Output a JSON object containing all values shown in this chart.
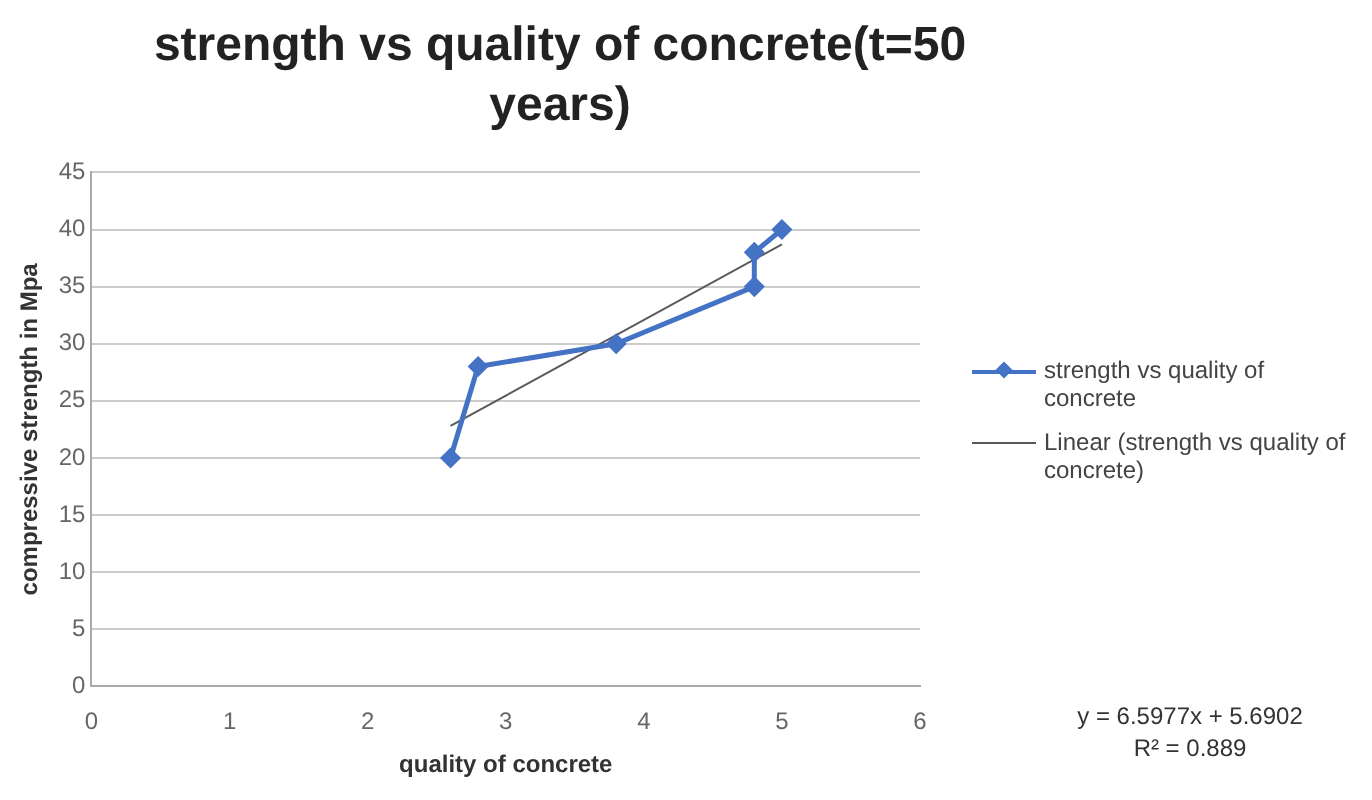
{
  "chart_data": {
    "type": "line",
    "title": "strength vs quality of concrete(t=50 years)",
    "xlabel": "quality of concrete",
    "ylabel": "compressive strength in Mpa",
    "series": [
      {
        "name": "strength vs quality of concrete",
        "color": "#4472c4",
        "x": [
          2.6,
          2.8,
          3.8,
          4.8,
          4.8,
          5
        ],
        "values": [
          20,
          28,
          30,
          35,
          38,
          40
        ],
        "marker": "diamond"
      },
      {
        "name": "Linear (strength vs quality of concrete)",
        "color": "#595959",
        "x": [
          2.6,
          5
        ],
        "values": [
          22.8,
          38.7
        ],
        "marker": "none"
      }
    ],
    "xlim": [
      0,
      6
    ],
    "xticks": [
      0,
      1,
      2,
      3,
      4,
      5,
      6
    ],
    "ylim": [
      0,
      45
    ],
    "yticks": [
      0,
      5,
      10,
      15,
      20,
      25,
      30,
      35,
      40,
      45
    ],
    "grid": "y",
    "legend": "right",
    "annotations": [
      "y = 6.5977x + 5.6902",
      "R² = 0.889"
    ]
  }
}
